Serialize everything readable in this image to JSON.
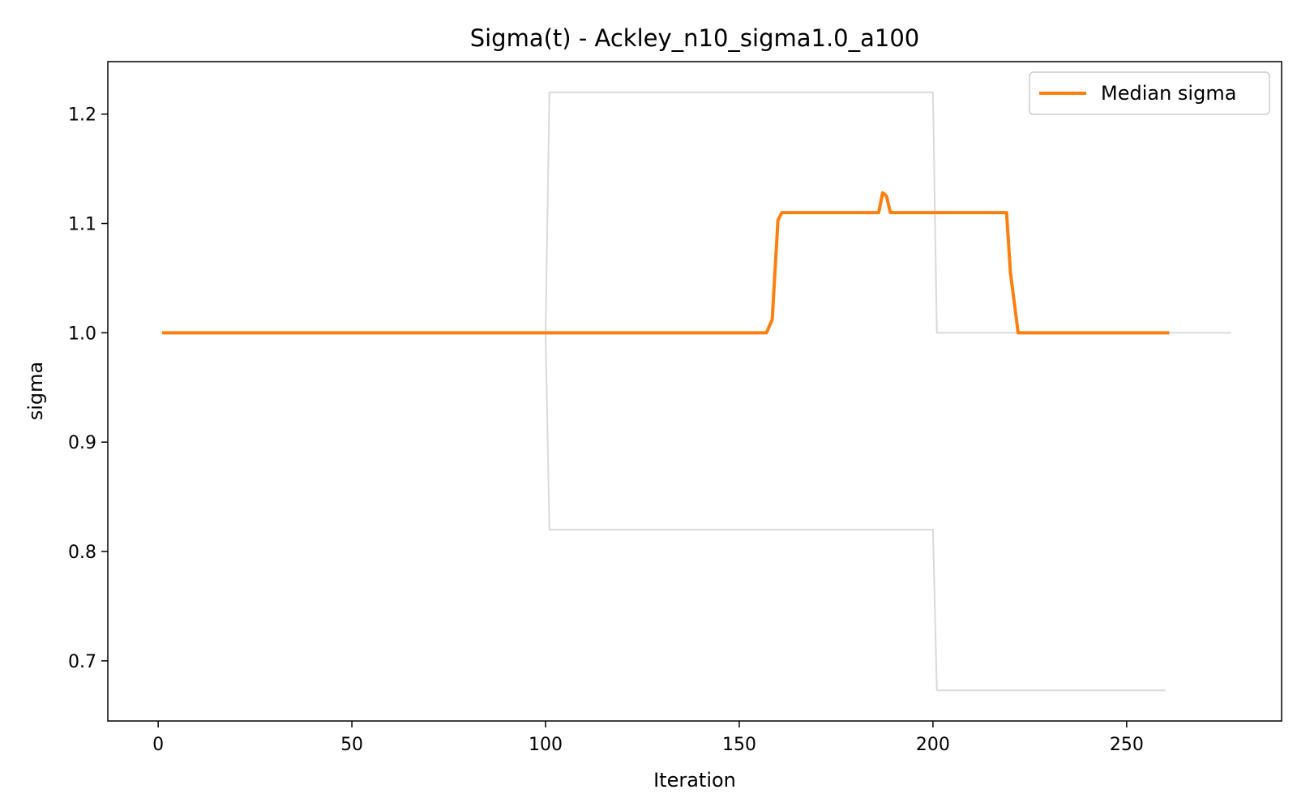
{
  "chart_data": {
    "type": "line",
    "title": "Sigma(t) - Ackley_n10_sigma1.0_a100",
    "xlabel": "Iteration",
    "ylabel": "sigma",
    "xlim": [
      -13,
      290
    ],
    "ylim": [
      0.645,
      1.248
    ],
    "xticks": [
      0,
      50,
      100,
      150,
      200,
      250
    ],
    "yticks": [
      0.7,
      0.8,
      0.9,
      1.0,
      1.1,
      1.2
    ],
    "grid": false,
    "legend": {
      "position": "top-right",
      "entries": [
        "Median sigma"
      ]
    },
    "series": [
      {
        "name": "Median sigma",
        "color": "#ff7f0e",
        "width": 4,
        "points": [
          [
            1,
            1.0
          ],
          [
            157,
            1.0
          ],
          [
            158.5,
            1.012
          ],
          [
            160,
            1.103
          ],
          [
            161,
            1.11
          ],
          [
            186,
            1.11
          ],
          [
            187,
            1.128
          ],
          [
            188,
            1.125
          ],
          [
            189,
            1.11
          ],
          [
            219,
            1.11
          ],
          [
            220,
            1.055
          ],
          [
            222,
            1.0
          ],
          [
            261,
            1.0
          ]
        ]
      },
      {
        "color": "#d9d9d9",
        "width": 2,
        "points": [
          [
            1,
            1.0
          ],
          [
            100,
            1.0
          ],
          [
            101,
            1.22
          ],
          [
            200,
            1.22
          ],
          [
            201,
            1.0
          ],
          [
            277,
            1.0
          ]
        ]
      },
      {
        "color": "#d9d9d9",
        "width": 2,
        "points": [
          [
            1,
            1.0
          ],
          [
            100,
            1.0
          ],
          [
            101,
            0.82
          ],
          [
            200,
            0.82
          ],
          [
            201,
            0.673
          ],
          [
            260,
            0.673
          ]
        ]
      }
    ]
  }
}
